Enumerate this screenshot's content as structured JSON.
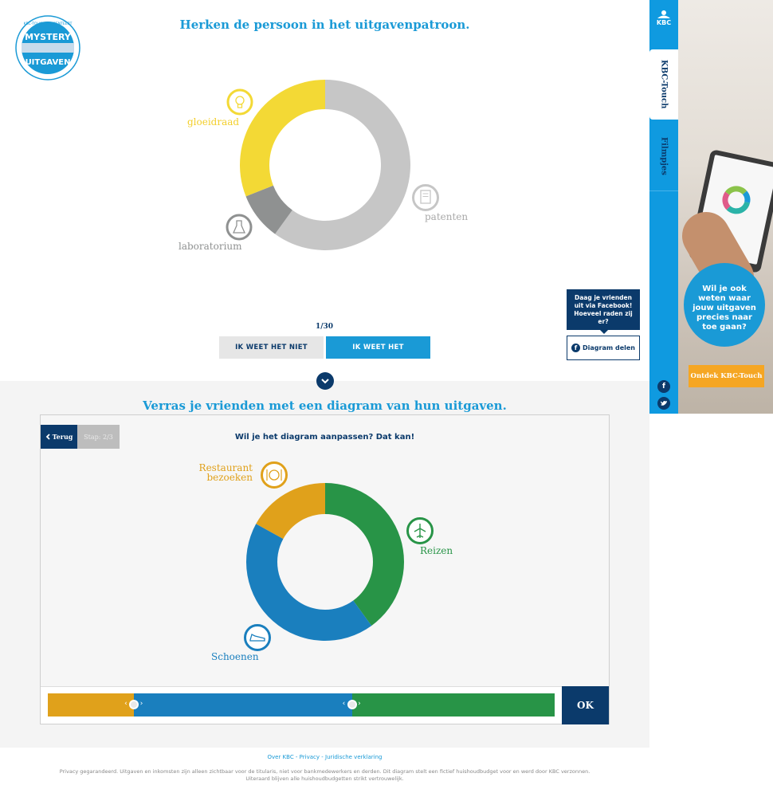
{
  "quiz": {
    "title": "Herken de persoon in het uitgavenpatroon.",
    "logo": {
      "line1": "KBC-TOUCH PRESENTEERT",
      "line2": "MYSTERY",
      "line3": "UITGAVEN"
    },
    "chart_labels": {
      "gloeidraad": "gloeidraad",
      "laboratorium": "laboratorium",
      "patenten": "patenten"
    },
    "counter": "1/30",
    "btn_dont_know": "IK WEET HET NIET",
    "btn_know": "IK WEET HET",
    "share_tooltip": "Daag je vrienden uit via Facebook! Hoeveel raden zij er?",
    "share_button": "Diagram delen"
  },
  "maker": {
    "title": "Verras je vrienden met een diagram van hun uitgaven.",
    "back": "Terug",
    "step": "Stap: 2/3",
    "question": "Wil je het diagram aanpassen? Dat kan!",
    "labels": {
      "restaurant": "Restaurant bezoeken",
      "reizen": "Reizen",
      "schoenen": "Schoenen"
    },
    "ok": "OK",
    "slider": [
      {
        "name": "Restaurant bezoeken",
        "fraction": 0.17,
        "color": "#e0a11b"
      },
      {
        "name": "Schoenen",
        "fraction": 0.43,
        "color": "#1a7fbe"
      },
      {
        "name": "Reizen",
        "fraction": 0.4,
        "color": "#289447"
      }
    ]
  },
  "footer": {
    "links": "Over KBC - Privacy - Juridische verklaring",
    "line1": "Privacy gegarandeerd. Uitgaven en inkomsten zijn alleen zichtbaar voor de titularis, niet voor bankmedewerkers en derden. Dit diagram stelt een fictief huishoudbudget voor en werd door KBC verzonnen.",
    "line2": "Uiteraard blijven alle huishoudbudgetten strikt vertrouwelijk."
  },
  "sidebar": {
    "brand": "KBC",
    "tab1": "KBC-Touch",
    "tab2": "Filmpjes"
  },
  "ad": {
    "bubble": "Wil je ook weten waar jouw uitgaven precies naar toe gaan?",
    "cta": "Ontdek KBC-Touch"
  },
  "colors": {
    "accent": "#1a9ad6",
    "navy": "#0b3a6b",
    "orange": "#f5a623"
  },
  "chart_data": [
    {
      "type": "pie",
      "categories": [
        "patenten",
        "laboratorium",
        "gloeidraad"
      ],
      "values": [
        60,
        9,
        31
      ],
      "colors": [
        "#c6c6c6",
        "#8f9191",
        "#f3d935"
      ]
    },
    {
      "type": "pie",
      "categories": [
        "Reizen",
        "Schoenen",
        "Restaurant bezoeken"
      ],
      "values": [
        40,
        43,
        17
      ],
      "colors": [
        "#289447",
        "#1a7fbe",
        "#e0a11b"
      ]
    }
  ]
}
